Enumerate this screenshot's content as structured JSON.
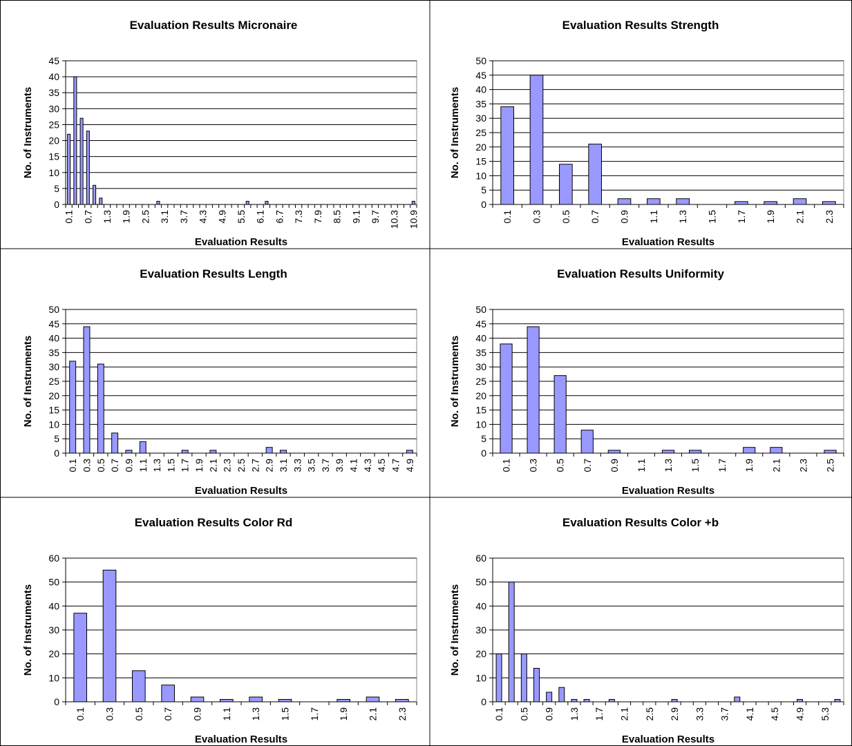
{
  "chart_data": [
    {
      "type": "bar",
      "title": "Evaluation Results Micronaire",
      "x_label": "Evaluation Results",
      "y_label": "No. of Instruments",
      "color": "#9999ff",
      "categories": [
        "0.1",
        null,
        null,
        "0.7",
        null,
        null,
        "1.3",
        null,
        null,
        "1.9",
        null,
        null,
        "2.5",
        null,
        null,
        "3.1",
        null,
        null,
        "3.7",
        null,
        null,
        "4.3",
        null,
        null,
        "4.9",
        null,
        null,
        "5.5",
        null,
        null,
        "6.1",
        null,
        null,
        "6.7",
        null,
        null,
        "7.3",
        null,
        null,
        "7.9",
        null,
        null,
        "8.5",
        null,
        null,
        "9.1",
        null,
        null,
        "9.7",
        null,
        null,
        "10.3",
        null,
        null,
        "10.9"
      ],
      "values": [
        22,
        40,
        27,
        23,
        6,
        2,
        0,
        0,
        0,
        0,
        0,
        0,
        0,
        0,
        1,
        0,
        0,
        0,
        0,
        0,
        0,
        0,
        0,
        0,
        0,
        0,
        0,
        0,
        1,
        0,
        0,
        1,
        0,
        0,
        0,
        0,
        0,
        0,
        0,
        0,
        0,
        0,
        0,
        0,
        0,
        0,
        0,
        0,
        0,
        0,
        0,
        0,
        0,
        0,
        1
      ],
      "ylim": [
        0,
        45
      ],
      "yticks": [
        0,
        5,
        10,
        15,
        20,
        25,
        30,
        35,
        40,
        45
      ],
      "grid": true
    },
    {
      "type": "bar",
      "title": "Evaluation Results Strength",
      "x_label": "Evaluation Results",
      "y_label": "No. of Instruments",
      "color": "#9999ff",
      "categories": [
        "0.1",
        "0.3",
        "0.5",
        "0.7",
        "0.9",
        "1.1",
        "1.3",
        "1.5",
        "1.7",
        "1.9",
        "2.1",
        "2.3"
      ],
      "values": [
        34,
        45,
        14,
        21,
        2,
        2,
        2,
        0,
        1,
        1,
        2,
        1
      ],
      "ylim": [
        0,
        50
      ],
      "yticks": [
        0,
        5,
        10,
        15,
        20,
        25,
        30,
        35,
        40,
        45,
        50
      ],
      "grid": true
    },
    {
      "type": "bar",
      "title": "Evaluation Results Length",
      "x_label": "Evaluation Results",
      "y_label": "No. of Instruments",
      "color": "#9999ff",
      "categories": [
        "0.1",
        "0.3",
        "0.5",
        "0.7",
        "0.9",
        "1.1",
        "1.3",
        "1.5",
        "1.7",
        "1.9",
        "2.1",
        "2.3",
        "2.5",
        "2.7",
        "2.9",
        "3.1",
        "3.3",
        "3.5",
        "3.7",
        "3.9",
        "4.1",
        "4.3",
        "4.5",
        "4.7",
        "4.9"
      ],
      "values": [
        32,
        44,
        31,
        7,
        1,
        4,
        0,
        0,
        1,
        0,
        1,
        0,
        0,
        0,
        2,
        1,
        0,
        0,
        0,
        0,
        0,
        0,
        0,
        0,
        1
      ],
      "ylim": [
        0,
        50
      ],
      "yticks": [
        0,
        5,
        10,
        15,
        20,
        25,
        30,
        35,
        40,
        45,
        50
      ],
      "grid": true
    },
    {
      "type": "bar",
      "title": "Evaluation Results Uniformity",
      "x_label": "Evaluation Results",
      "y_label": "No. of Instruments",
      "color": "#9999ff",
      "categories": [
        "0.1",
        "0.3",
        "0.5",
        "0.7",
        "0.9",
        "1.1",
        "1.3",
        "1.5",
        "1.7",
        "1.9",
        "2.1",
        "2.3",
        "2.5"
      ],
      "values": [
        38,
        44,
        27,
        8,
        1,
        0,
        1,
        1,
        0,
        2,
        2,
        0,
        1
      ],
      "ylim": [
        0,
        50
      ],
      "yticks": [
        0,
        5,
        10,
        15,
        20,
        25,
        30,
        35,
        40,
        45,
        50
      ],
      "grid": true
    },
    {
      "type": "bar",
      "title": "Evaluation Results Color Rd",
      "x_label": "Evaluation Results",
      "y_label": "No. of Instruments",
      "color": "#9999ff",
      "categories": [
        "0.1",
        "0.3",
        "0.5",
        "0.7",
        "0.9",
        "1.1",
        "1.3",
        "1.5",
        "1.7",
        "1.9",
        "2.1",
        "2.3"
      ],
      "values": [
        37,
        55,
        13,
        7,
        2,
        1,
        2,
        1,
        0,
        1,
        2,
        1
      ],
      "ylim": [
        0,
        60
      ],
      "yticks": [
        0,
        10,
        20,
        30,
        40,
        50,
        60
      ],
      "grid": true
    },
    {
      "type": "bar",
      "title": "Evaluation Results Color +b",
      "x_label": "Evaluation Results",
      "y_label": "No. of Instruments",
      "color": "#9999ff",
      "categories": [
        "0.1",
        null,
        "0.5",
        null,
        "0.9",
        null,
        "1.3",
        null,
        "1.7",
        null,
        "2.1",
        null,
        "2.5",
        null,
        "2.9",
        null,
        "3.3",
        null,
        "3.7",
        null,
        "4.1",
        null,
        "4.5",
        null,
        "4.9",
        null,
        "5.3",
        null
      ],
      "values": [
        20,
        50,
        20,
        14,
        4,
        6,
        1,
        1,
        0,
        1,
        0,
        0,
        0,
        0,
        1,
        0,
        0,
        0,
        0,
        2,
        0,
        0,
        0,
        0,
        1,
        0,
        0,
        1
      ],
      "ylim": [
        0,
        60
      ],
      "yticks": [
        0,
        10,
        20,
        30,
        40,
        50,
        60
      ],
      "grid": true
    }
  ]
}
